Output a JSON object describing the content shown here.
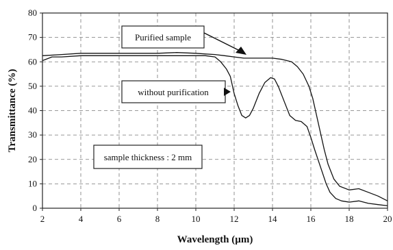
{
  "chart_data": {
    "type": "line",
    "title": "",
    "xlabel": "Wavelength (µm)",
    "ylabel": "Transmittance (%)",
    "xlim": [
      2,
      20
    ],
    "ylim": [
      0,
      80
    ],
    "xticks": [
      2,
      4,
      6,
      8,
      10,
      12,
      14,
      16,
      18,
      20
    ],
    "yticks": [
      0,
      10,
      20,
      30,
      40,
      50,
      60,
      70,
      80
    ],
    "grid": true,
    "legend": "none",
    "series": [
      {
        "name": "Purified sample",
        "x": [
          2,
          3,
          4,
          5,
          6,
          7,
          8,
          9,
          10,
          10.5,
          11,
          11.5,
          12,
          12.5,
          13,
          13.5,
          14,
          14.5,
          15,
          15.3,
          15.6,
          15.9,
          16.1,
          16.3,
          16.5,
          16.7,
          16.9,
          17.2,
          17.5,
          18,
          18.5,
          19,
          19.5,
          20
        ],
        "values": [
          62.5,
          63,
          63.5,
          63.5,
          63.5,
          63.5,
          63.5,
          63.8,
          63.5,
          63.2,
          63,
          62.5,
          62,
          61.5,
          61.5,
          61.5,
          61.5,
          61,
          60,
          58,
          55,
          50,
          45,
          38,
          31,
          24,
          18,
          12,
          9,
          7.5,
          8,
          6.5,
          5,
          3
        ]
      },
      {
        "name": "without purification",
        "x": [
          2,
          2.5,
          3,
          4,
          5,
          6,
          7,
          8,
          9,
          10,
          10.5,
          11,
          11.3,
          11.6,
          11.8,
          12,
          12.2,
          12.4,
          12.6,
          12.8,
          13,
          13.3,
          13.6,
          13.9,
          14.1,
          14.3,
          14.6,
          14.9,
          15.2,
          15.5,
          15.8,
          16,
          16.2,
          16.5,
          16.8,
          17,
          17.3,
          17.6,
          18,
          18.5,
          19,
          19.5,
          20
        ],
        "values": [
          60.5,
          62,
          62,
          62.5,
          62.5,
          62.5,
          62.5,
          62.5,
          62.5,
          62.5,
          62.5,
          62,
          60,
          57,
          54,
          47,
          42,
          38,
          37,
          38,
          41,
          47,
          51.5,
          53.5,
          53,
          50,
          44,
          38,
          36,
          35.5,
          33.5,
          29,
          24,
          17,
          10,
          6.5,
          4,
          3,
          2.5,
          3,
          2,
          1.5,
          1
        ]
      }
    ],
    "annotations": [
      {
        "text": "Purified sample"
      },
      {
        "text": "without purification"
      },
      {
        "text": "sample thickness : 2 mm"
      }
    ]
  }
}
